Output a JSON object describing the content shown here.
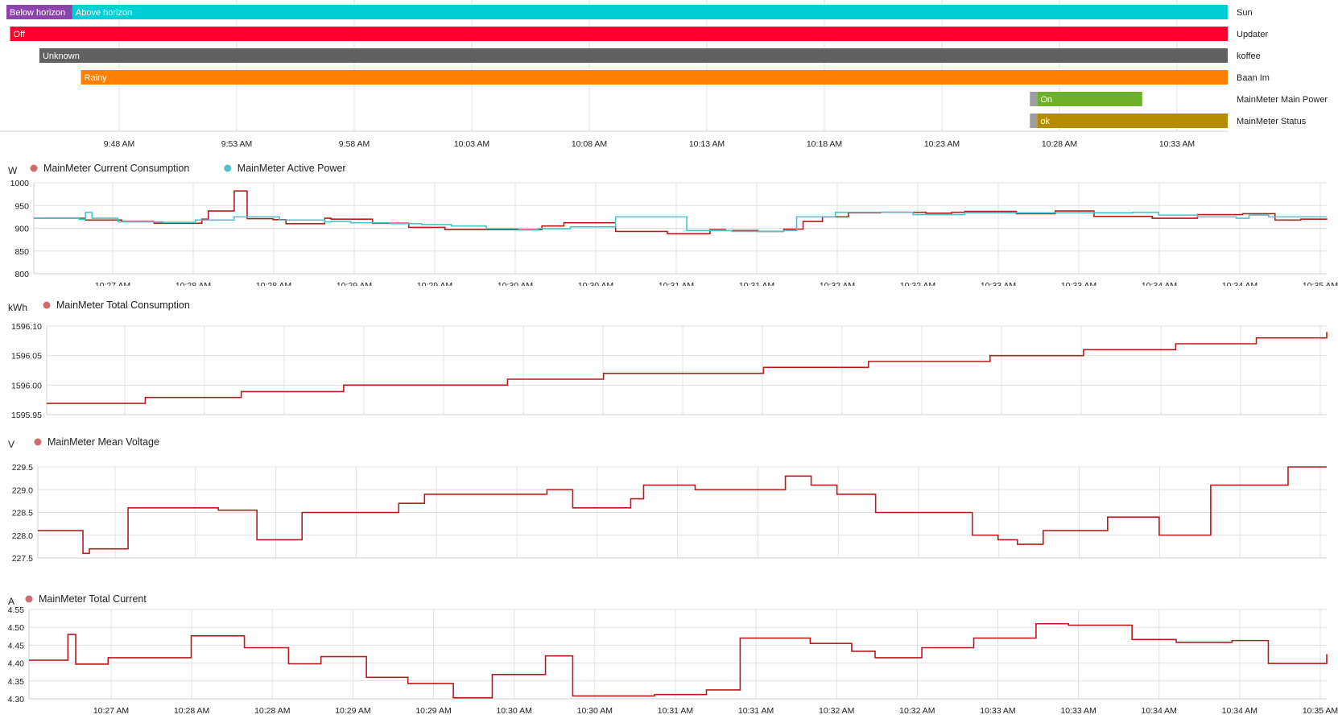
{
  "timeline": {
    "ticks": [
      "9:48 AM",
      "9:53 AM",
      "9:58 AM",
      "10:03 AM",
      "10:08 AM",
      "10:13 AM",
      "10:18 AM",
      "10:23 AM",
      "10:28 AM",
      "10:33 AM"
    ],
    "rows": [
      {
        "name": "Sun",
        "segments": [
          {
            "label": "Below horizon",
            "start": 0.0,
            "end": 0.054,
            "color": "#8e44ad"
          },
          {
            "label": "Above horizon",
            "start": 0.054,
            "end": 1.0,
            "color": "#00cfd8",
            "dark_text": true
          }
        ]
      },
      {
        "name": "Updater",
        "segments": [
          {
            "label": "Off",
            "start": 0.003,
            "end": 1.0,
            "color": "#ff002e"
          }
        ]
      },
      {
        "name": "koffee",
        "segments": [
          {
            "label": "Unknown",
            "start": 0.027,
            "end": 1.0,
            "color": "#616161"
          }
        ]
      },
      {
        "name": "Baan Im",
        "segments": [
          {
            "label": "Rainy",
            "start": 0.061,
            "end": 1.0,
            "color": "#ff7f00"
          }
        ]
      },
      {
        "name": "MainMeter Main Power",
        "segments": [
          {
            "label": "",
            "start": 0.838,
            "end": 0.844,
            "color": "#9e9e9e"
          },
          {
            "label": "On",
            "start": 0.844,
            "end": 0.93,
            "color": "#6fb02a"
          }
        ]
      },
      {
        "name": "MainMeter Status",
        "segments": [
          {
            "label": "",
            "start": 0.838,
            "end": 0.844,
            "color": "#9e9e9e"
          },
          {
            "label": "ok",
            "start": 0.844,
            "end": 1.0,
            "color": "#b58c00"
          }
        ]
      }
    ]
  },
  "chart_data": [
    {
      "type": "line",
      "unit": "W",
      "ylim": [
        800,
        1000
      ],
      "yticks": [
        "800",
        "850",
        "900",
        "950",
        "1000"
      ],
      "xticks": [
        "10:27 AM",
        "10:28 AM",
        "10:28 AM",
        "10:29 AM",
        "10:29 AM",
        "10:30 AM",
        "10:30 AM",
        "10:31 AM",
        "10:31 AM",
        "10:32 AM",
        "10:32 AM",
        "10:33 AM",
        "10:33 AM",
        "10:34 AM",
        "10:34 AM",
        "10:35 AM"
      ],
      "series": [
        {
          "name": "MainMeter Current Consumption",
          "color": "#b71c1c",
          "legend_color": "#cf6b6b",
          "x": [
            0,
            0.04,
            0.068,
            0.093,
            0.13,
            0.135,
            0.155,
            0.165,
            0.185,
            0.195,
            0.225,
            0.23,
            0.262,
            0.29,
            0.318,
            0.353,
            0.393,
            0.41,
            0.45,
            0.49,
            0.523,
            0.535,
            0.56,
            0.58,
            0.595,
            0.61,
            0.63,
            0.655,
            0.69,
            0.71,
            0.715,
            0.72,
            0.76,
            0.79,
            0.82,
            0.865,
            0.9,
            0.935,
            0.96,
            0.98,
            1.0
          ],
          "values": [
            922,
            918,
            915,
            911,
            920,
            938,
            982,
            921,
            919,
            910,
            922,
            920,
            911,
            902,
            897,
            897,
            905,
            912,
            893,
            888,
            897,
            895,
            893,
            898,
            915,
            925,
            934,
            935,
            933,
            935,
            935,
            937,
            932,
            938,
            926,
            922,
            930,
            932,
            918,
            920,
            919
          ]
        },
        {
          "name": "MainMeter Active Power",
          "color": "#4dc3c8",
          "legend_color": "#4dc3c8",
          "x": [
            0,
            0.035,
            0.04,
            0.045,
            0.065,
            0.1,
            0.125,
            0.155,
            0.19,
            0.225,
            0.23,
            0.245,
            0.275,
            0.3,
            0.323,
            0.35,
            0.375,
            0.39,
            0.415,
            0.45,
            0.505,
            0.54,
            0.58,
            0.59,
            0.62,
            0.68,
            0.72,
            0.77,
            0.81,
            0.85,
            0.87,
            0.9,
            0.93,
            0.94,
            0.955,
            1.0
          ],
          "values": [
            922,
            920,
            935,
            922,
            914,
            913,
            918,
            925,
            918,
            914,
            915,
            912,
            910,
            908,
            905,
            899,
            896,
            899,
            903,
            925,
            895,
            893,
            895,
            925,
            935,
            930,
            934,
            934,
            934,
            935,
            929,
            925,
            922,
            929,
            925,
            925
          ]
        }
      ]
    },
    {
      "type": "line",
      "unit": "kWh",
      "ylim": [
        1595.95,
        1596.1
      ],
      "yticks": [
        "1595.95",
        "1596.00",
        "1596.05",
        "1596.10"
      ],
      "xticks": [
        "10:27 AM",
        "10:28 AM",
        "10:28 AM",
        "10:29 AM",
        "10:29 AM",
        "10:30 AM",
        "10:30 AM",
        "10:31 AM",
        "10:31 AM",
        "10:32 AM",
        "10:32 AM",
        "10:33 AM",
        "10:33 AM",
        "10:34 AM",
        "10:34 AM",
        "10:35 AM"
      ],
      "series": [
        {
          "name": "MainMeter Total Consumption",
          "color": "#b71c1c",
          "legend_color": "#cf6b6b",
          "x": [
            0,
            0.077,
            0.152,
            0.232,
            0.36,
            0.435,
            0.56,
            0.642,
            0.737,
            0.81,
            0.882,
            0.945,
            1.0
          ],
          "values": [
            1595.969,
            1595.979,
            1595.989,
            1596.0,
            1596.01,
            1596.02,
            1596.03,
            1596.04,
            1596.05,
            1596.06,
            1596.07,
            1596.08,
            1596.09
          ]
        }
      ]
    },
    {
      "type": "line",
      "unit": "V",
      "ylim": [
        227.5,
        229.5
      ],
      "yticks": [
        "227.5",
        "228.0",
        "228.5",
        "229.0",
        "229.5"
      ],
      "xticks": [
        "10:27 AM",
        "10:28 AM",
        "10:28 AM",
        "10:29 AM",
        "10:29 AM",
        "10:30 AM",
        "10:30 AM",
        "10:31 AM",
        "10:31 AM",
        "10:32 AM",
        "10:32 AM",
        "10:33 AM",
        "10:33 AM",
        "10:34 AM",
        "10:34 AM",
        "10:35 AM"
      ],
      "series": [
        {
          "name": "MainMeter Mean Voltage",
          "color": "#b71c1c",
          "legend_color": "#cf6b6b",
          "x": [
            0,
            0.035,
            0.04,
            0.07,
            0.14,
            0.17,
            0.205,
            0.28,
            0.3,
            0.395,
            0.415,
            0.46,
            0.46,
            0.47,
            0.51,
            0.58,
            0.6,
            0.62,
            0.65,
            0.725,
            0.745,
            0.76,
            0.78,
            0.81,
            0.83,
            0.87,
            0.91,
            0.935,
            0.97,
            1.0
          ],
          "values": [
            228.1,
            227.6,
            227.7,
            228.6,
            228.55,
            227.9,
            228.5,
            228.7,
            228.9,
            229.0,
            228.6,
            228.6,
            228.8,
            229.1,
            229.0,
            229.3,
            229.1,
            228.9,
            228.5,
            228.0,
            227.9,
            227.8,
            228.1,
            228.1,
            228.4,
            228.0,
            229.1,
            229.1,
            229.5,
            229.5
          ]
        }
      ]
    },
    {
      "type": "line",
      "unit": "A",
      "ylim": [
        4.3,
        4.55
      ],
      "yticks": [
        "4.30",
        "4.35",
        "4.40",
        "4.45",
        "4.50",
        "4.55"
      ],
      "xticks": [
        "10:27 AM",
        "10:28 AM",
        "10:28 AM",
        "10:29 AM",
        "10:29 AM",
        "10:30 AM",
        "10:30 AM",
        "10:31 AM",
        "10:31 AM",
        "10:32 AM",
        "10:32 AM",
        "10:33 AM",
        "10:33 AM",
        "10:34 AM",
        "10:34 AM",
        "10:35 AM"
      ],
      "series": [
        {
          "name": "MainMeter Total Current",
          "color": "#b71c1c",
          "legend_color": "#cf6b6b",
          "x": [
            0,
            0.03,
            0.036,
            0.061,
            0.125,
            0.166,
            0.2,
            0.225,
            0.26,
            0.292,
            0.327,
            0.357,
            0.398,
            0.419,
            0.482,
            0.522,
            0.548,
            0.602,
            0.634,
            0.652,
            0.688,
            0.728,
            0.776,
            0.801,
            0.85,
            0.884,
            0.927,
            0.955,
            1.0
          ],
          "values": [
            4.408,
            4.48,
            4.397,
            4.415,
            4.476,
            4.443,
            4.398,
            4.418,
            4.36,
            4.343,
            4.303,
            4.368,
            4.42,
            4.308,
            4.312,
            4.325,
            4.47,
            4.455,
            4.433,
            4.415,
            4.443,
            4.47,
            4.51,
            4.506,
            4.466,
            4.458,
            4.463,
            4.399,
            4.425
          ]
        }
      ]
    }
  ]
}
